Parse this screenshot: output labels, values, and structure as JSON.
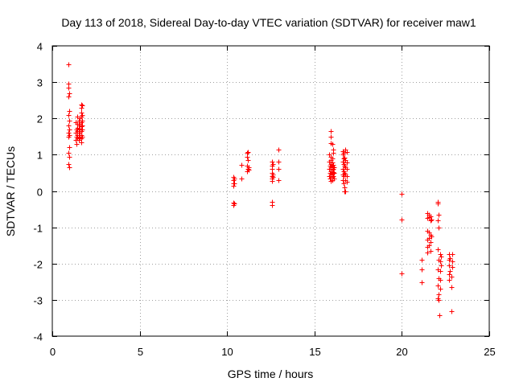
{
  "chart_data": {
    "type": "scatter",
    "title": "Day 113 of 2018, Sidereal Day-to-day VTEC variation (SDTVAR) for receiver maw1",
    "xlabel": "GPS time / hours",
    "ylabel": "SDTVAR / TECUs",
    "xlim": [
      0,
      25
    ],
    "ylim": [
      -4,
      4
    ],
    "xticks": [
      0,
      5,
      10,
      15,
      20,
      25
    ],
    "yticks": [
      -4,
      -3,
      -2,
      -1,
      0,
      1,
      2,
      3,
      4
    ],
    "xtick_labels": [
      "0",
      "5",
      "10",
      "15",
      "20",
      "25"
    ],
    "ytick_labels": [
      "-4",
      "-3",
      "-2",
      "-1",
      "0",
      "1",
      "2",
      "3",
      "4"
    ],
    "grid": true,
    "marker": "+",
    "color": "#ff0000",
    "series": [
      {
        "name": "maw1",
        "points": [
          [
            0.92,
            3.5
          ],
          [
            0.92,
            2.95
          ],
          [
            0.92,
            2.85
          ],
          [
            0.95,
            2.7
          ],
          [
            0.92,
            2.6
          ],
          [
            0.95,
            2.2
          ],
          [
            0.92,
            2.1
          ],
          [
            0.95,
            1.95
          ],
          [
            0.92,
            1.8
          ],
          [
            0.95,
            1.7
          ],
          [
            0.92,
            1.6
          ],
          [
            0.95,
            1.55
          ],
          [
            0.92,
            1.5
          ],
          [
            0.95,
            1.2
          ],
          [
            0.92,
            1.05
          ],
          [
            0.95,
            0.95
          ],
          [
            0.92,
            0.75
          ],
          [
            0.95,
            0.65
          ],
          [
            1.35,
            1.9
          ],
          [
            1.38,
            1.7
          ],
          [
            1.35,
            1.6
          ],
          [
            1.38,
            1.5
          ],
          [
            1.35,
            1.4
          ],
          [
            1.38,
            1.3
          ],
          [
            1.45,
            2.05
          ],
          [
            1.45,
            1.85
          ],
          [
            1.45,
            1.75
          ],
          [
            1.45,
            1.65
          ],
          [
            1.45,
            1.55
          ],
          [
            1.45,
            1.45
          ],
          [
            1.52,
            1.95
          ],
          [
            1.52,
            1.8
          ],
          [
            1.52,
            1.7
          ],
          [
            1.52,
            1.6
          ],
          [
            1.52,
            1.5
          ],
          [
            1.52,
            1.4
          ],
          [
            1.58,
            2.0
          ],
          [
            1.58,
            1.85
          ],
          [
            1.58,
            1.72
          ],
          [
            1.58,
            1.6
          ],
          [
            1.58,
            1.48
          ],
          [
            1.65,
            2.38
          ],
          [
            1.65,
            2.3
          ],
          [
            1.65,
            2.15
          ],
          [
            1.65,
            2.05
          ],
          [
            1.65,
            1.9
          ],
          [
            1.65,
            1.78
          ],
          [
            1.65,
            1.65
          ],
          [
            1.65,
            1.55
          ],
          [
            1.65,
            1.45
          ],
          [
            1.65,
            1.35
          ],
          [
            1.7,
            2.35
          ],
          [
            1.7,
            2.1
          ],
          [
            1.7,
            1.95
          ],
          [
            1.7,
            1.8
          ],
          [
            1.7,
            1.7
          ],
          [
            1.7,
            1.5
          ],
          [
            10.35,
            0.38
          ],
          [
            10.35,
            0.3
          ],
          [
            10.38,
            0.2
          ],
          [
            10.35,
            0.15
          ],
          [
            10.38,
            -0.32
          ],
          [
            10.35,
            -0.38
          ],
          [
            10.42,
            0.22
          ],
          [
            10.42,
            0.35
          ],
          [
            10.42,
            -0.35
          ],
          [
            10.8,
            0.72
          ],
          [
            10.8,
            0.35
          ],
          [
            11.15,
            1.05
          ],
          [
            11.15,
            0.95
          ],
          [
            11.2,
            0.85
          ],
          [
            11.15,
            0.7
          ],
          [
            11.18,
            0.6
          ],
          [
            11.15,
            0.55
          ],
          [
            11.22,
            0.65
          ],
          [
            11.22,
            0.58
          ],
          [
            11.2,
            1.08
          ],
          [
            12.55,
            0.8
          ],
          [
            12.55,
            0.7
          ],
          [
            12.58,
            0.6
          ],
          [
            12.55,
            0.5
          ],
          [
            12.58,
            0.42
          ],
          [
            12.55,
            0.35
          ],
          [
            12.58,
            0.28
          ],
          [
            12.55,
            -0.3
          ],
          [
            12.58,
            -0.38
          ],
          [
            12.62,
            0.75
          ],
          [
            12.62,
            0.45
          ],
          [
            12.62,
            0.38
          ],
          [
            12.95,
            1.15
          ],
          [
            12.95,
            0.8
          ],
          [
            12.95,
            0.6
          ],
          [
            12.95,
            0.3
          ],
          [
            15.85,
            1.0
          ],
          [
            15.85,
            0.8
          ],
          [
            15.88,
            0.7
          ],
          [
            15.85,
            0.6
          ],
          [
            15.88,
            0.5
          ],
          [
            15.85,
            0.4
          ],
          [
            15.88,
            0.35
          ],
          [
            15.95,
            1.65
          ],
          [
            15.95,
            1.5
          ],
          [
            15.95,
            1.32
          ],
          [
            15.95,
            0.95
          ],
          [
            15.95,
            0.85
          ],
          [
            15.95,
            0.75
          ],
          [
            15.95,
            0.65
          ],
          [
            15.95,
            0.55
          ],
          [
            15.95,
            0.45
          ],
          [
            15.95,
            0.35
          ],
          [
            15.95,
            0.28
          ],
          [
            16.02,
            1.3
          ],
          [
            16.02,
            0.9
          ],
          [
            16.02,
            0.78
          ],
          [
            16.02,
            0.68
          ],
          [
            16.02,
            0.58
          ],
          [
            16.02,
            0.48
          ],
          [
            16.02,
            0.38
          ],
          [
            16.02,
            0.3
          ],
          [
            16.08,
            1.15
          ],
          [
            16.08,
            1.05
          ],
          [
            16.08,
            0.72
          ],
          [
            16.08,
            0.62
          ],
          [
            16.08,
            0.52
          ],
          [
            16.08,
            0.42
          ],
          [
            16.12,
            0.65
          ],
          [
            16.12,
            0.5
          ],
          [
            16.12,
            0.35
          ],
          [
            16.6,
            1.1
          ],
          [
            16.6,
            1.0
          ],
          [
            16.6,
            0.8
          ],
          [
            16.6,
            0.6
          ],
          [
            16.6,
            0.45
          ],
          [
            16.6,
            0.3
          ],
          [
            16.68,
            1.05
          ],
          [
            16.68,
            0.9
          ],
          [
            16.68,
            0.75
          ],
          [
            16.68,
            0.55
          ],
          [
            16.68,
            0.4
          ],
          [
            16.68,
            0.2
          ],
          [
            16.72,
            0.92
          ],
          [
            16.72,
            0.7
          ],
          [
            16.72,
            0.5
          ],
          [
            16.72,
            0.1
          ],
          [
            16.72,
            0.0
          ],
          [
            16.78,
            1.15
          ],
          [
            16.78,
            0.85
          ],
          [
            16.78,
            0.65
          ],
          [
            16.78,
            0.45
          ],
          [
            16.78,
            0.3
          ],
          [
            16.78,
            -0.02
          ],
          [
            16.85,
            1.08
          ],
          [
            16.85,
            0.78
          ],
          [
            16.85,
            0.6
          ],
          [
            16.85,
            0.4
          ],
          [
            16.85,
            0.25
          ],
          [
            20.0,
            -0.07
          ],
          [
            20.0,
            -0.78
          ],
          [
            20.0,
            -2.28
          ],
          [
            21.15,
            -1.9
          ],
          [
            21.15,
            -2.15
          ],
          [
            21.15,
            -2.52
          ],
          [
            21.45,
            -0.6
          ],
          [
            21.45,
            -0.75
          ],
          [
            21.45,
            -1.1
          ],
          [
            21.45,
            -1.35
          ],
          [
            21.45,
            -1.55
          ],
          [
            21.45,
            -1.7
          ],
          [
            21.55,
            -0.65
          ],
          [
            21.55,
            -0.72
          ],
          [
            21.55,
            -1.15
          ],
          [
            21.55,
            -1.3
          ],
          [
            21.55,
            -1.5
          ],
          [
            21.62,
            -0.7
          ],
          [
            21.62,
            -0.8
          ],
          [
            21.62,
            -1.2
          ],
          [
            21.62,
            -1.4
          ],
          [
            21.62,
            -1.65
          ],
          [
            21.7,
            -0.78
          ],
          [
            21.7,
            -1.25
          ],
          [
            22.05,
            -0.3
          ],
          [
            22.05,
            -0.35
          ],
          [
            22.08,
            -0.65
          ],
          [
            22.05,
            -0.8
          ],
          [
            22.1,
            -1.0
          ],
          [
            22.05,
            -1.6
          ],
          [
            22.1,
            -1.9
          ],
          [
            22.05,
            -2.15
          ],
          [
            22.1,
            -2.4
          ],
          [
            22.05,
            -2.6
          ],
          [
            22.1,
            -2.85
          ],
          [
            22.05,
            -2.95
          ],
          [
            22.1,
            -3.0
          ],
          [
            22.18,
            -1.75
          ],
          [
            22.18,
            -1.95
          ],
          [
            22.18,
            -2.2
          ],
          [
            22.18,
            -2.45
          ],
          [
            22.18,
            -2.7
          ],
          [
            22.15,
            -3.42
          ],
          [
            22.22,
            -1.8
          ],
          [
            22.22,
            -2.05
          ],
          [
            22.7,
            -1.75
          ],
          [
            22.7,
            -1.9
          ],
          [
            22.7,
            -2.05
          ],
          [
            22.72,
            -2.3
          ],
          [
            22.72,
            -2.45
          ],
          [
            22.75,
            -2.2
          ],
          [
            22.75,
            -1.85
          ],
          [
            22.88,
            -1.75
          ],
          [
            22.88,
            -1.95
          ],
          [
            22.88,
            -2.1
          ],
          [
            22.85,
            -2.35
          ],
          [
            22.85,
            -2.65
          ],
          [
            22.85,
            -3.32
          ]
        ]
      }
    ]
  }
}
